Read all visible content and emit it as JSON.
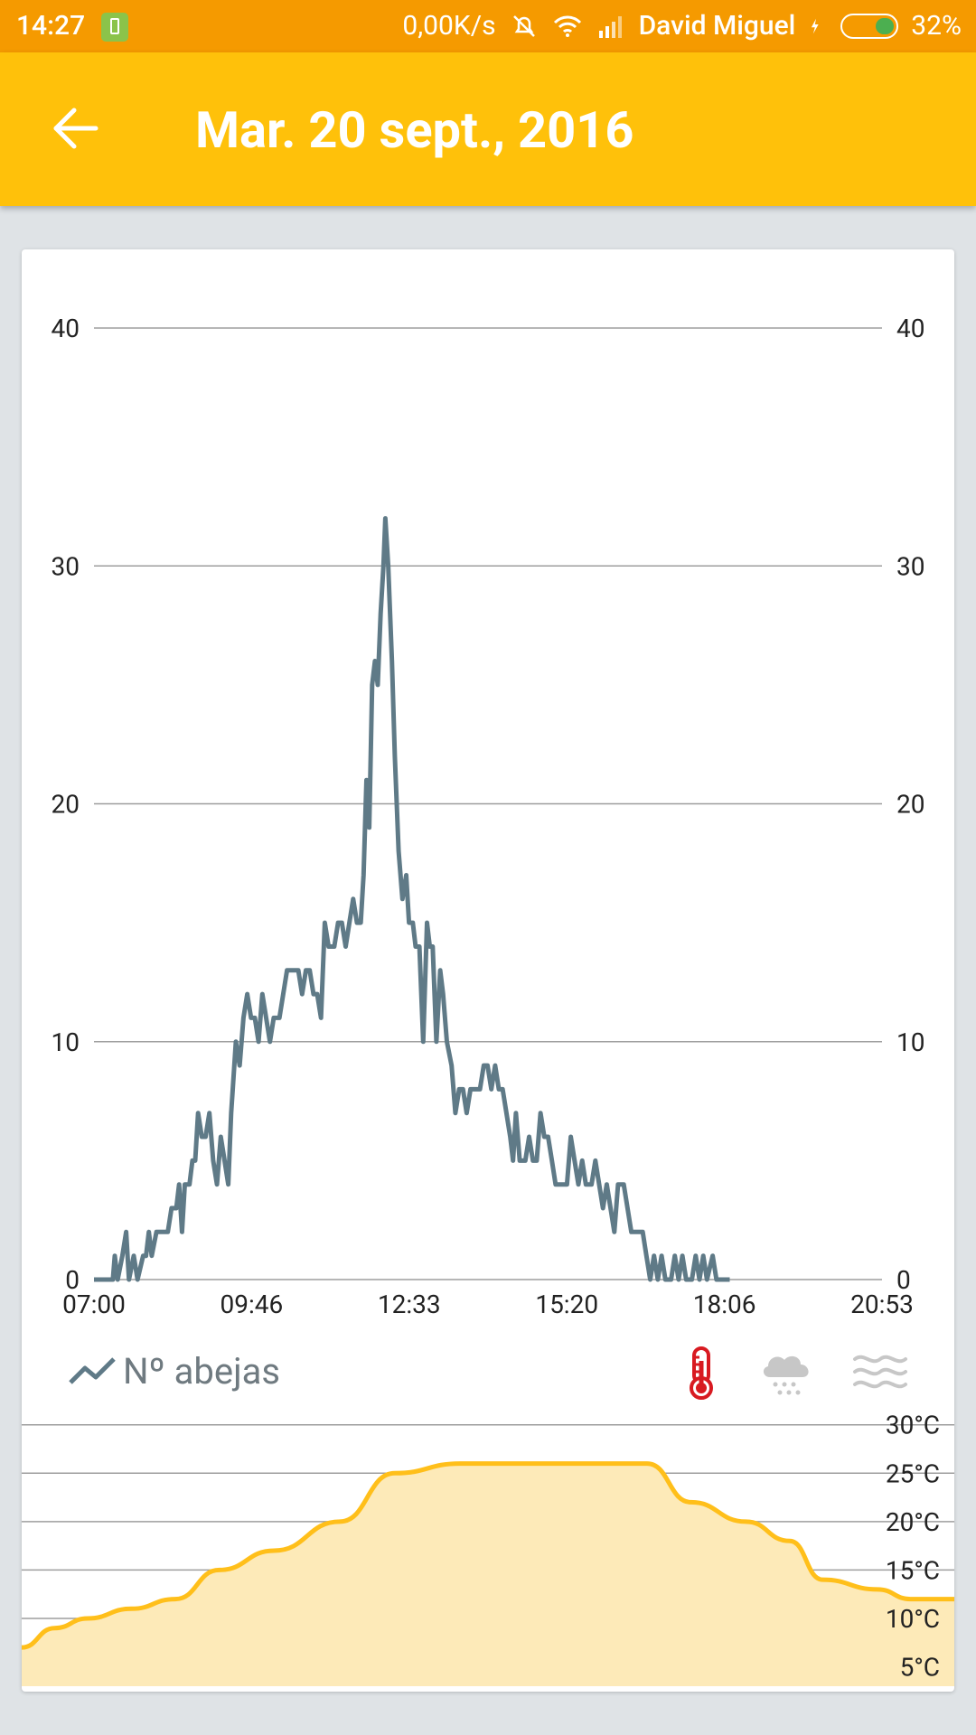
{
  "status_bar": {
    "time": "14:27",
    "speed": "0,00K/s",
    "carrier": "David Miguel",
    "battery": "32%"
  },
  "app_bar": {
    "title": "Mar. 20 sept., 2016",
    "back_icon": "arrow-left-icon"
  },
  "legend": {
    "series_label": "Nº abejas",
    "icons": [
      "thermometer-icon",
      "rain-cloud-icon",
      "wind-icon"
    ]
  },
  "colors": {
    "status_bar": "#f59a00",
    "app_bar": "#ffc10a",
    "bees_line": "#5f7a87",
    "temperature_line": "#ffbf1a",
    "temperature_fill": "#fdeab8",
    "thermometer_active": "#d81a21",
    "inactive_icon": "#c7c7c7"
  },
  "chart_data": [
    {
      "type": "line",
      "title": "",
      "ylabel": "",
      "xlabel": "",
      "x_tick_labels": [
        "07:00",
        "09:46",
        "12:33",
        "15:20",
        "18:06",
        "20:53"
      ],
      "y_ticks": [
        0,
        10,
        20,
        30,
        40
      ],
      "ylim": [
        0,
        40
      ],
      "xlim_minutes_from_start": [
        0,
        833
      ],
      "grid": true,
      "series": [
        {
          "name": "Nº abejas",
          "points": [
            [
              0,
              0
            ],
            [
              20,
              0
            ],
            [
              22,
              1
            ],
            [
              25,
              0
            ],
            [
              30,
              1
            ],
            [
              34,
              2
            ],
            [
              37,
              0
            ],
            [
              42,
              1
            ],
            [
              46,
              0
            ],
            [
              52,
              1
            ],
            [
              55,
              1
            ],
            [
              58,
              2
            ],
            [
              61,
              1
            ],
            [
              66,
              2
            ],
            [
              72,
              2
            ],
            [
              78,
              2
            ],
            [
              82,
              3
            ],
            [
              87,
              3
            ],
            [
              90,
              4
            ],
            [
              93,
              2
            ],
            [
              96,
              4
            ],
            [
              101,
              4
            ],
            [
              104,
              5
            ],
            [
              107,
              5
            ],
            [
              110,
              7
            ],
            [
              114,
              6
            ],
            [
              118,
              6
            ],
            [
              122,
              7
            ],
            [
              126,
              5
            ],
            [
              130,
              4
            ],
            [
              134,
              6
            ],
            [
              138,
              5
            ],
            [
              142,
              4
            ],
            [
              145,
              7
            ],
            [
              150,
              10
            ],
            [
              154,
              9
            ],
            [
              158,
              11
            ],
            [
              162,
              12
            ],
            [
              166,
              11
            ],
            [
              170,
              11
            ],
            [
              174,
              10
            ],
            [
              178,
              12
            ],
            [
              182,
              11
            ],
            [
              186,
              10
            ],
            [
              190,
              11
            ],
            [
              196,
              11
            ],
            [
              200,
              12
            ],
            [
              204,
              13
            ],
            [
              210,
              13
            ],
            [
              216,
              13
            ],
            [
              220,
              12
            ],
            [
              224,
              13
            ],
            [
              228,
              13
            ],
            [
              232,
              12
            ],
            [
              236,
              12
            ],
            [
              240,
              11
            ],
            [
              244,
              15
            ],
            [
              248,
              14
            ],
            [
              254,
              14
            ],
            [
              258,
              15
            ],
            [
              262,
              15
            ],
            [
              266,
              14
            ],
            [
              270,
              15
            ],
            [
              274,
              16
            ],
            [
              278,
              15
            ],
            [
              282,
              15
            ],
            [
              285,
              17
            ],
            [
              288,
              21
            ],
            [
              291,
              19
            ],
            [
              294,
              25
            ],
            [
              297,
              26
            ],
            [
              300,
              25
            ],
            [
              303,
              28
            ],
            [
              306,
              30
            ],
            [
              308,
              32
            ],
            [
              311,
              30
            ],
            [
              315,
              26
            ],
            [
              318,
              22
            ],
            [
              322,
              18
            ],
            [
              326,
              16
            ],
            [
              330,
              17
            ],
            [
              333,
              15
            ],
            [
              337,
              15
            ],
            [
              340,
              14
            ],
            [
              344,
              14
            ],
            [
              348,
              10
            ],
            [
              352,
              15
            ],
            [
              355,
              14
            ],
            [
              358,
              14
            ],
            [
              362,
              10
            ],
            [
              366,
              13
            ],
            [
              369,
              12
            ],
            [
              373,
              10
            ],
            [
              378,
              9
            ],
            [
              382,
              7
            ],
            [
              386,
              8
            ],
            [
              390,
              8
            ],
            [
              394,
              7
            ],
            [
              398,
              8
            ],
            [
              404,
              8
            ],
            [
              408,
              8
            ],
            [
              412,
              9
            ],
            [
              416,
              9
            ],
            [
              420,
              8
            ],
            [
              424,
              9
            ],
            [
              428,
              8
            ],
            [
              432,
              8
            ],
            [
              436,
              7
            ],
            [
              440,
              6
            ],
            [
              443,
              5
            ],
            [
              446,
              7
            ],
            [
              450,
              5
            ],
            [
              456,
              5
            ],
            [
              460,
              6
            ],
            [
              464,
              5
            ],
            [
              468,
              5
            ],
            [
              472,
              7
            ],
            [
              476,
              6
            ],
            [
              480,
              6
            ],
            [
              484,
              5
            ],
            [
              488,
              4
            ],
            [
              494,
              4
            ],
            [
              500,
              4
            ],
            [
              504,
              6
            ],
            [
              508,
              5
            ],
            [
              512,
              4
            ],
            [
              516,
              5
            ],
            [
              520,
              4
            ],
            [
              526,
              4
            ],
            [
              530,
              5
            ],
            [
              534,
              4
            ],
            [
              538,
              3
            ],
            [
              542,
              4
            ],
            [
              546,
              3
            ],
            [
              550,
              2
            ],
            [
              554,
              4
            ],
            [
              560,
              4
            ],
            [
              564,
              3
            ],
            [
              568,
              2
            ],
            [
              572,
              2
            ],
            [
              576,
              2
            ],
            [
              580,
              2
            ],
            [
              584,
              1
            ],
            [
              588,
              0
            ],
            [
              592,
              1
            ],
            [
              596,
              0
            ],
            [
              600,
              1
            ],
            [
              604,
              0
            ],
            [
              610,
              0
            ],
            [
              614,
              1
            ],
            [
              618,
              0
            ],
            [
              622,
              1
            ],
            [
              626,
              0
            ],
            [
              632,
              0
            ],
            [
              636,
              1
            ],
            [
              640,
              0
            ],
            [
              644,
              1
            ],
            [
              648,
              0
            ],
            [
              654,
              1
            ],
            [
              658,
              0
            ],
            [
              664,
              0
            ],
            [
              672,
              0
            ]
          ]
        }
      ]
    },
    {
      "type": "area",
      "title": "",
      "y_tick_labels": [
        "30°C",
        "25°C",
        "20°C",
        "15°C",
        "10°C",
        "5°C"
      ],
      "ylim": [
        3,
        31
      ],
      "grid": true,
      "series": [
        {
          "name": "",
          "points": [
            [
              0,
              7
            ],
            [
              30,
              9
            ],
            [
              60,
              10
            ],
            [
              100,
              11
            ],
            [
              140,
              12
            ],
            [
              180,
              15
            ],
            [
              230,
              17
            ],
            [
              290,
              20
            ],
            [
              340,
              25
            ],
            [
              400,
              26
            ],
            [
              460,
              26
            ],
            [
              520,
              26
            ],
            [
              570,
              26
            ],
            [
              610,
              22
            ],
            [
              660,
              20
            ],
            [
              700,
              18
            ],
            [
              730,
              14
            ],
            [
              780,
              13
            ],
            [
              810,
              12
            ],
            [
              850,
              12
            ]
          ]
        }
      ]
    }
  ]
}
